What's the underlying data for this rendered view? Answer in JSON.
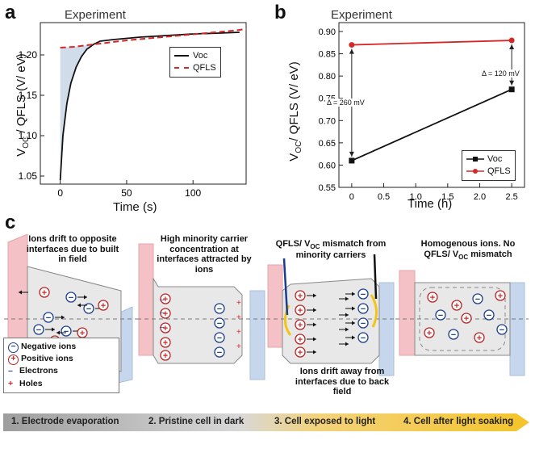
{
  "panel_a": {
    "letter": "a",
    "header": "Experiment",
    "ylabel": "V",
    "ylabel_sub": "OC",
    "ylabel_rest": " / QFLS (V/ eV)",
    "xlabel": "Time (s)",
    "legend": [
      "Voc",
      "QFLS"
    ]
  },
  "panel_b": {
    "letter": "b",
    "header": "Experiment",
    "ylabel": "V",
    "ylabel_sub": "OC",
    "ylabel_rest": "/ QFLS (V/ eV)",
    "xlabel": "Time (h)",
    "legend": [
      "Voc",
      "QFLS"
    ],
    "annotations": [
      "Δ = 120 mV",
      "Δ = 260 mV"
    ]
  },
  "panel_c": {
    "letter": "c",
    "captions": [
      "Ions drift to opposite interfaces due to built in field",
      "High minority carrier concentration at interfaces attracted by ions",
      "QFLS/ V",
      "OC",
      " mismatch from minority carriers",
      "Homogenous ions. No QFLS/ V",
      "OC",
      " mismatch",
      "Ions drift away from interfaces due to back field"
    ],
    "legend": [
      "Negative ions",
      "Positive ions",
      "Electrons",
      "Holes"
    ],
    "stages": [
      "1. Electrode evaporation",
      "2. Pristine cell in dark",
      "3. Cell exposed to light",
      "4. Cell after light soaking"
    ]
  },
  "colors": {
    "voc": "#111111",
    "qfls": "#d62728",
    "fill": "#c9d6e8",
    "pink": "#f4c2c6",
    "blue": "#c6d6ec",
    "arrow": "#f2c418"
  },
  "chart_data": [
    {
      "type": "line",
      "xlabel": "Time (s)",
      "ylabel": "VOC / QFLS (V/ eV)",
      "xlim": [
        -15,
        140
      ],
      "ylim": [
        1.04,
        1.24
      ],
      "xticks": [
        0,
        50,
        100
      ],
      "yticks": [
        1.05,
        1.1,
        1.15,
        1.2
      ],
      "series": [
        {
          "name": "Voc",
          "x": [
            0,
            2,
            5,
            8,
            12,
            16,
            20,
            25,
            30,
            40,
            60,
            80,
            100,
            120,
            135
          ],
          "y": [
            1.045,
            1.1,
            1.14,
            1.165,
            1.185,
            1.198,
            1.207,
            1.213,
            1.217,
            1.219,
            1.222,
            1.224,
            1.226,
            1.227,
            1.228
          ]
        },
        {
          "name": "QFLS",
          "x": [
            0,
            10,
            20,
            30,
            50,
            70,
            90,
            110,
            130,
            140
          ],
          "y": [
            1.209,
            1.21,
            1.212,
            1.214,
            1.218,
            1.221,
            1.224,
            1.227,
            1.23,
            1.232
          ]
        }
      ]
    },
    {
      "type": "line",
      "xlabel": "Time (h)",
      "ylabel": "VOC/ QFLS (V/ eV)",
      "xlim": [
        -0.2,
        2.7
      ],
      "ylim": [
        0.55,
        0.92
      ],
      "xticks": [
        0,
        0.5,
        1.0,
        1.5,
        2.0,
        2.5
      ],
      "yticks": [
        0.55,
        0.6,
        0.65,
        0.7,
        0.75,
        0.8,
        0.85,
        0.9
      ],
      "series": [
        {
          "name": "Voc",
          "x": [
            0,
            2.5
          ],
          "y": [
            0.61,
            0.77
          ]
        },
        {
          "name": "QFLS",
          "x": [
            0,
            2.5
          ],
          "y": [
            0.87,
            0.88
          ]
        }
      ]
    }
  ]
}
